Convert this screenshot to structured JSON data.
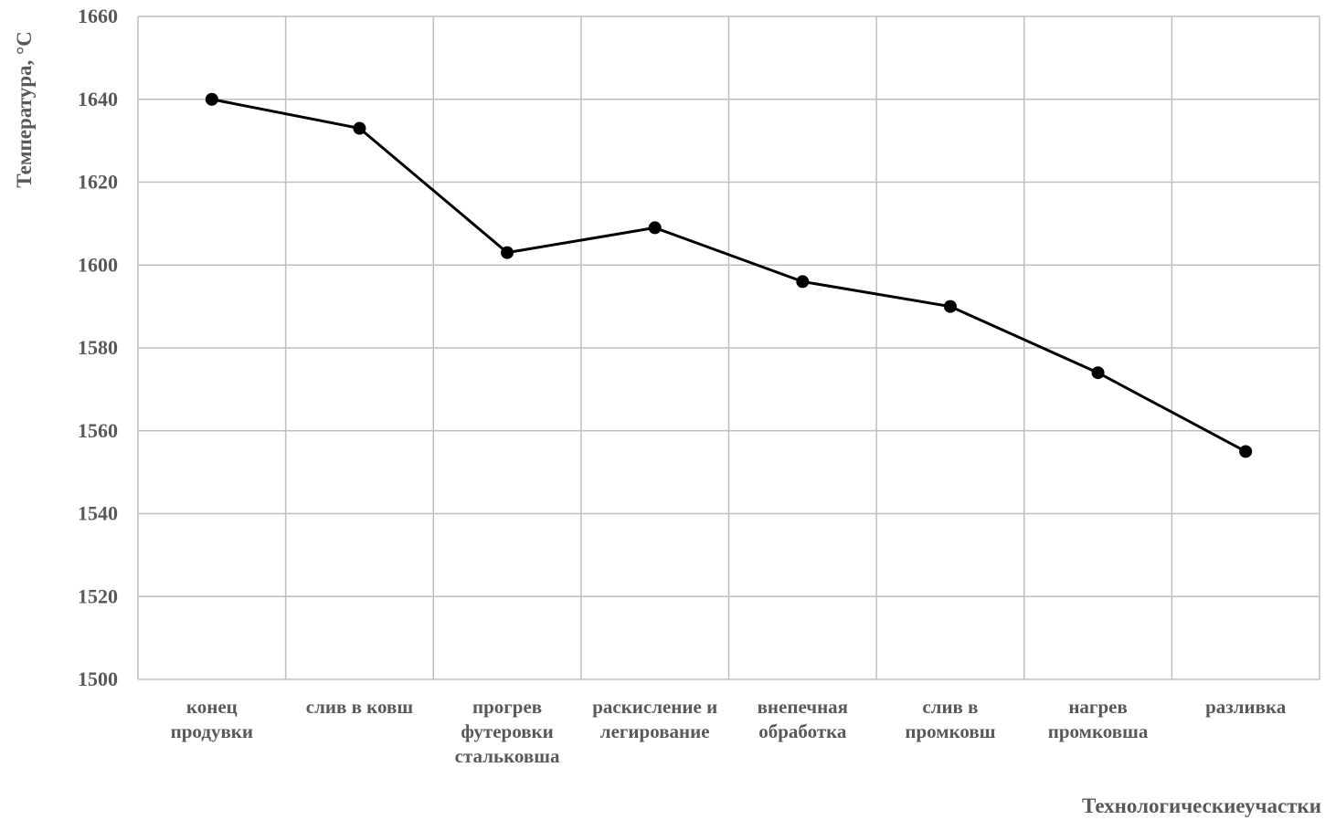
{
  "chart_data": {
    "type": "line",
    "categories": [
      [
        "конец",
        "продувки"
      ],
      [
        "слив в ковш"
      ],
      [
        "прогрев",
        "футеровки",
        "стальковша"
      ],
      [
        "раскисление и",
        "легирование"
      ],
      [
        "внепечная",
        "обработка"
      ],
      [
        "слив в",
        "промковш"
      ],
      [
        "нагрев",
        "промковша"
      ],
      [
        "разливка"
      ]
    ],
    "series": [
      {
        "values": [
          1640,
          1633,
          1603,
          1609,
          1596,
          1590,
          1574,
          1555
        ]
      }
    ],
    "xlabel": "Технологическиеучастки",
    "ylabel": "Температура, °С",
    "ylim": [
      1500,
      1660
    ],
    "yticks": [
      1500,
      1520,
      1540,
      1560,
      1580,
      1600,
      1620,
      1640,
      1660
    ],
    "grid": true,
    "legend": "none",
    "colors": {
      "line": "#000000",
      "grid": "#bfbfbf",
      "text": "#595959"
    }
  }
}
